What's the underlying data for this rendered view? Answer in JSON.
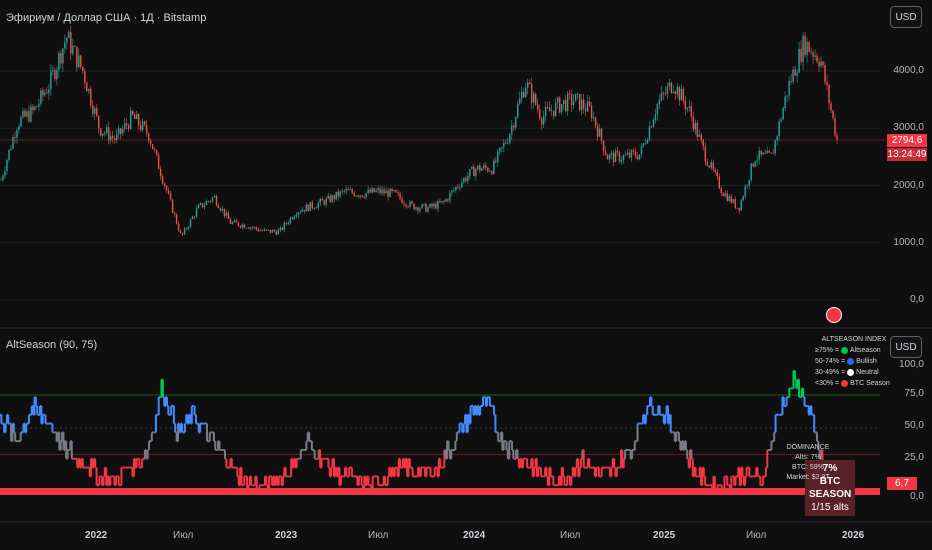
{
  "header": {
    "symbol_title": "Эфириум / Доллар США · 1Д · Bitstamp",
    "currency_button": "USD"
  },
  "price_axis": {
    "labels": [
      "4000,0",
      "3000,0",
      "2000,0",
      "1000,0",
      "0,0"
    ],
    "current_price": "2794,6",
    "countdown": "13:24:49"
  },
  "indicator": {
    "title": "AltSeason (90, 75)",
    "currency_button": "USD",
    "axis_labels": [
      "100,0",
      "75,0",
      "50,0",
      "25,0",
      "0,0"
    ],
    "current_value": "6,7",
    "legend": {
      "heading": "ALTSEASON INDEX",
      "items": [
        {
          "range": "≥75% =",
          "label": "Altseason",
          "color": "#00c853"
        },
        {
          "range": "50-74% =",
          "label": "Bullish",
          "color": "#2962ff"
        },
        {
          "range": "30-49% =",
          "label": "Neutral",
          "color": "#ffffff"
        },
        {
          "range": "<30% =",
          "label": "BTC Season",
          "color": "#f23645"
        }
      ]
    },
    "dominance": {
      "heading": "DOMINANCE",
      "alts": "Alts: 7%",
      "btc": "BTC: 59%",
      "market": "Market: $2.8T"
    },
    "season_box": {
      "value": "7%",
      "season": "BTC SEASON",
      "alts_count": "1/15 alts"
    }
  },
  "time_axis": {
    "labels": [
      "2022",
      "Июл",
      "2023",
      "Июл",
      "2024",
      "Июл",
      "2025",
      "Июл",
      "2026"
    ]
  },
  "colors": {
    "up": "#26a69a",
    "down": "#ef5350",
    "altseason": "#00c853",
    "bullish": "#448aff",
    "neutral": "#787b86",
    "btc_season": "#f23645",
    "background": "#0f0f0f"
  },
  "chart_data": [
    {
      "type": "candlestick",
      "title": "Эфириум / Доллар США · 1Д · Bitstamp",
      "ylim": [
        0,
        4800
      ],
      "x": [
        "2021-07",
        "2021-08",
        "2021-09",
        "2021-10",
        "2021-11",
        "2021-12",
        "2022-01",
        "2022-02",
        "2022-03",
        "2022-04",
        "2022-05",
        "2022-06",
        "2022-07",
        "2022-08",
        "2022-09",
        "2022-10",
        "2022-11",
        "2022-12",
        "2023-01",
        "2023-02",
        "2023-03",
        "2023-04",
        "2023-05",
        "2023-06",
        "2023-07",
        "2023-08",
        "2023-09",
        "2023-10",
        "2023-11",
        "2023-12",
        "2024-01",
        "2024-02",
        "2024-03",
        "2024-04",
        "2024-05",
        "2024-06",
        "2024-07",
        "2024-08",
        "2024-09",
        "2024-10",
        "2024-11",
        "2024-12",
        "2025-01",
        "2025-02",
        "2025-03",
        "2025-04",
        "2025-05",
        "2025-06",
        "2025-07",
        "2025-08",
        "2025-09",
        "2025-10"
      ],
      "values": [
        2100,
        3100,
        3300,
        3800,
        4600,
        4000,
        3000,
        2800,
        3200,
        2900,
        2000,
        1100,
        1600,
        1800,
        1350,
        1300,
        1200,
        1200,
        1550,
        1650,
        1750,
        1900,
        1850,
        1900,
        1850,
        1650,
        1600,
        1700,
        2050,
        2300,
        2300,
        2900,
        3800,
        3200,
        3400,
        3500,
        3300,
        2500,
        2500,
        2550,
        3400,
        3800,
        3300,
        2500,
        1900,
        1600,
        2500,
        2500,
        3700,
        4500,
        4200,
        2800
      ]
    },
    {
      "type": "line",
      "title": "AltSeason (90, 75)",
      "ylim": [
        0,
        100
      ],
      "x": [
        "2021-07",
        "2021-08",
        "2021-09",
        "2021-10",
        "2021-11",
        "2021-12",
        "2022-01",
        "2022-02",
        "2022-03",
        "2022-04",
        "2022-05",
        "2022-06",
        "2022-07",
        "2022-08",
        "2022-09",
        "2022-10",
        "2022-11",
        "2022-12",
        "2023-01",
        "2023-02",
        "2023-03",
        "2023-04",
        "2023-05",
        "2023-06",
        "2023-07",
        "2023-08",
        "2023-09",
        "2023-10",
        "2023-11",
        "2023-12",
        "2024-01",
        "2024-02",
        "2024-03",
        "2024-04",
        "2024-05",
        "2024-06",
        "2024-07",
        "2024-08",
        "2024-09",
        "2024-10",
        "2024-11",
        "2024-12",
        "2025-01",
        "2025-02",
        "2025-03",
        "2025-04",
        "2025-05",
        "2025-06",
        "2025-07",
        "2025-08",
        "2025-09",
        "2025-10"
      ],
      "values": [
        60,
        40,
        65,
        55,
        35,
        25,
        15,
        10,
        20,
        30,
        80,
        45,
        60,
        40,
        25,
        10,
        5,
        10,
        20,
        40,
        25,
        15,
        10,
        5,
        15,
        20,
        15,
        20,
        40,
        60,
        70,
        40,
        30,
        20,
        10,
        15,
        25,
        15,
        20,
        35,
        70,
        60,
        40,
        15,
        5,
        10,
        15,
        10,
        60,
        85,
        60,
        7
      ],
      "reference_lines": [
        75,
        50,
        30
      ]
    }
  ]
}
